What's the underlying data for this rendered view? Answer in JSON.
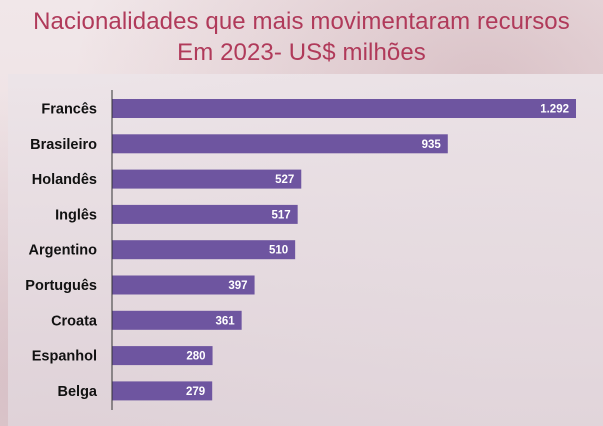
{
  "title_line1": "Nacionalidades que mais movimentaram recursos",
  "title_line2": "Em 2023- US$ milhões",
  "chart_data": {
    "type": "bar",
    "orientation": "horizontal",
    "title": "Nacionalidades que mais movimentaram recursos Em 2023- US$ milhões",
    "categories": [
      "Francês",
      "Brasileiro",
      "Holandês",
      "Inglês",
      "Argentino",
      "Português",
      "Croata",
      "Espanhol",
      "Belga"
    ],
    "values": [
      1292,
      935,
      527,
      517,
      510,
      397,
      361,
      280,
      279
    ],
    "value_labels": [
      "1.292",
      "935",
      "527",
      "517",
      "510",
      "397",
      "361",
      "280",
      "279"
    ],
    "xlim": [
      0,
      1350
    ],
    "grid": false,
    "legend": "none",
    "bar_color": "#6e55a0"
  }
}
